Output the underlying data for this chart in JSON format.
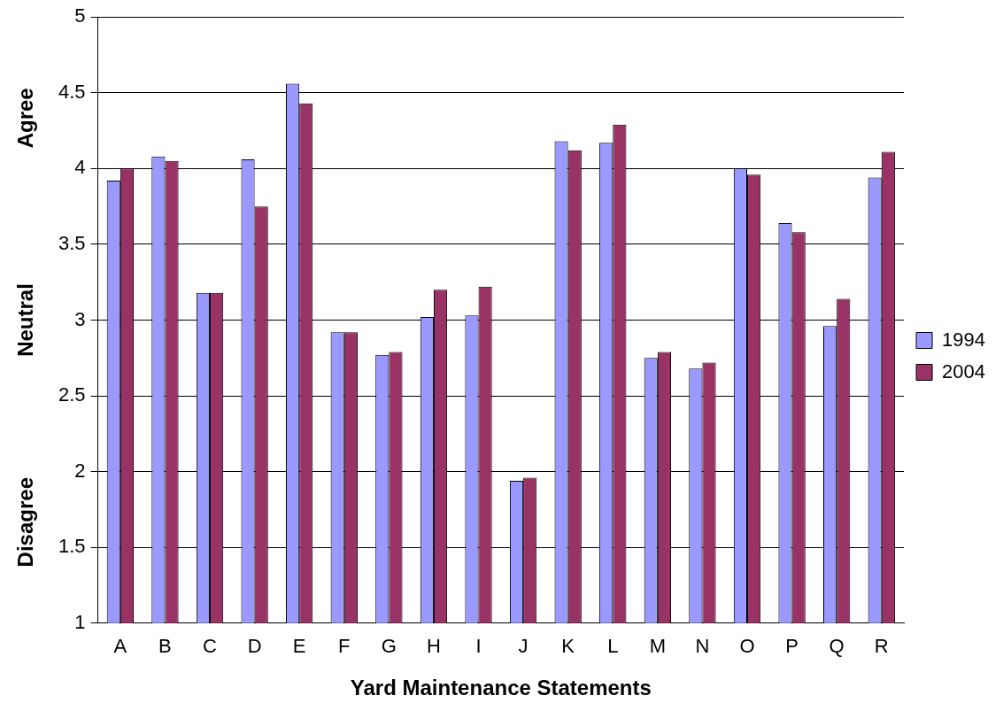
{
  "chart_data": {
    "type": "bar",
    "xlabel": "Yard Maintenance Statements",
    "categories": [
      "A",
      "B",
      "C",
      "D",
      "E",
      "F",
      "G",
      "H",
      "I",
      "J",
      "K",
      "L",
      "M",
      "N",
      "O",
      "P",
      "Q",
      "R"
    ],
    "series": [
      {
        "name": "1994",
        "color": "#9999ff",
        "values": [
          3.92,
          4.08,
          3.18,
          4.06,
          4.56,
          2.92,
          2.77,
          3.02,
          3.03,
          1.94,
          4.18,
          4.17,
          2.75,
          2.68,
          4.0,
          3.64,
          2.96,
          3.94
        ]
      },
      {
        "name": "2004",
        "color": "#993366",
        "values": [
          4.0,
          4.05,
          3.18,
          3.75,
          4.43,
          2.92,
          2.79,
          3.2,
          3.22,
          1.96,
          4.12,
          4.29,
          2.79,
          2.72,
          3.96,
          3.58,
          3.14,
          4.11
        ]
      }
    ],
    "ylim": [
      1,
      5
    ],
    "yticks": [
      1,
      1.5,
      2,
      2.5,
      3,
      3.5,
      4,
      4.5,
      5
    ],
    "grid": "y",
    "legend": "right",
    "annotations": [
      "Agree",
      "Neutral",
      "Disagree"
    ]
  }
}
